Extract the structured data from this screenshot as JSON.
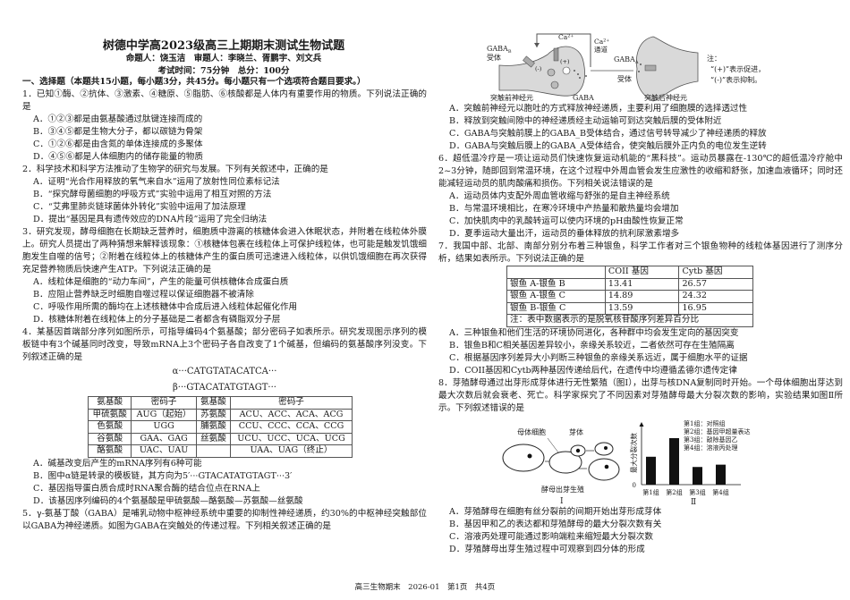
{
  "header": {
    "title": "树德中学高2023级高三上期期末测试生物试题",
    "authors": "命题人：饶玉洁　审题人：李晓兰、胥鹏宇、刘文兵",
    "exam_info": "考试时间：75分钟　总分：100分"
  },
  "section": "一、选择题（本题共15小题，每小题3分，共45分。每小题只有一个选项符合题目要求。）",
  "questions": [
    {
      "stem": "1．已知①酶、②抗体、③激素、④糖原、⑤脂肪、⑥核酸都是人体内有重要作用的物质。下列说法正确的是",
      "options": [
        "A．①②③都是由氨基酸通过肽键连接而成的",
        "B．③④⑤都是生物大分子，都以碳链为骨架",
        "C．①②⑥都是由含氮的单体连接成的多聚体",
        "D．④⑤⑥都是人体细胞内的储存能量的物质"
      ]
    },
    {
      "stem": "2．科学技术和科学方法推动了生物学的研究与发展。下列有关叙述中，正确的是",
      "options": [
        "A．证明“光合作用释放的氧气来自水”运用了放射性同位素标记法",
        "B．“探究酵母菌细胞的呼吸方式”实验中运用了相互对照的方法",
        "C．“艾弗里肺炎链球菌体外转化”实验中运用了加法原理",
        "D．提出“基因是具有遗传效应的DNA片段”运用了完全归纳法"
      ]
    },
    {
      "stem": "3．研究发现，酵母细胞在长期缺乏营养时，细胞质中游离的核糖体会进入休眠状态，并附着在线粒体外膜上。研究人员提出了两种猜想来解释该现象：①核糖体包裹在线粒体上可保护线粒体，也可能是触发饥饿细胞发生自噬的信号；②附着在线粒体上的核糖体产生的蛋白质可迅速进入线粒体，以供饥饿细胞在再次获得充足营养物质后快速产生ATP。下列说法正确的是",
      "options": [
        "A．线粒体是细胞的“动力车间”，产生的能量可供核糖体合成蛋白质",
        "B．应阻止营养缺乏时细胞自噬过程以保证细胞器不被清除",
        "C．呼吸作用所需的酶均在上述核糖体中合成后进入线粒体起催化作用",
        "D．核糖体附着在线粒体上的分子基础是二者都含有磷脂双分子层"
      ]
    },
    {
      "stem": "4．某基因首端部分序列如图所示，可指导编码4个氨基酸；部分密码子如表所示。研究发现图示序列的模板链中有3个碱基同时改变，导致mRNA上3个密码子各自改变了1个碱基，但编码的氨基酸序列没变。下列叙述正确的是",
      "sequence_alpha": "α···CATGTATACATCA···",
      "sequence_beta": "β···GTACATATGTAGT···",
      "codon_table": {
        "headers": [
          "氨基酸",
          "密码子",
          "氨基酸",
          "密码子"
        ],
        "rows": [
          [
            "甲硫氨酸",
            "AUG（起始）",
            "苏氨酸",
            "ACU、ACC、ACA、ACG"
          ],
          [
            "色氨酸",
            "UGG",
            "脯氨酸",
            "CCU、CCC、CCA、CCG"
          ],
          [
            "谷氨酸",
            "GAA、GAG",
            "丝氨酸",
            "UCU、UCC、UCA、UCG"
          ],
          [
            "酪氨酸",
            "UAC、UAU",
            "",
            "UAA、UAG（终止）"
          ]
        ]
      },
      "options": [
        "A．碱基改变后产生的mRNA序列有6种可能",
        "B．图中α链是转录的模板链，其方向为5′···GTACATATGTAGT···3′",
        "C．基因指导蛋白质合成时RNA聚合酶的结合位点在RNA上",
        "D．该基因序列编码的4个氨基酸是甲硫氨酸—酪氨酸—苏氨酸—丝氨酸"
      ]
    },
    {
      "stem": "5．γ-氨基丁酸（GABA）是哺乳动物中枢神经系统中重要的抑制性神经递质，约30%的中枢神经突触部位以GABA为神经递质。如图为GABA在突触处的传递过程。下列相关叙述正确的是",
      "figure": {
        "ca": "Ca²⁺",
        "ca_channel_1": "Ca²⁺",
        "ca_channel_2": "通道",
        "gaba_b_1": "GABA",
        "gaba_b_sub": "B",
        "gaba_b_2": "受体",
        "gaba_a_1": "GABA",
        "gaba_a_sub": "A",
        "gaba_a_2": "受体",
        "minus": "(-)",
        "plus": "(+)",
        "gaba": "GABA",
        "pre": "突触前神经元",
        "post": "突触后神经元",
        "note_title": "注：",
        "note_1": "“(+)”表示促进，",
        "note_2": "“(-)”表示抑制。"
      },
      "options": [
        "A．突触前神经元以胞吐的方式释放神经递质，主要利用了细胞膜的选择透过性",
        "B．释放到突触间隙中的神经递质经主动运输可到达突触后膜的受体附近",
        "C．GABA与突触前膜上的GABA_B受体结合，通过信号转导减少了神经递质的释放",
        "D．GABA与突触后膜上的GABA_A受体结合，使突触后膜外正内负的电位发生逆转"
      ]
    },
    {
      "stem": "6．超低温冷疗是一项让运动员们快速恢复运动机能的“黑科技”。运动员暴露在-130℃的超低温冷疗舱中2~3分钟，随即回到常温环境，在这个过程中外周血管会发生应激性的收缩和舒张，加速血液循环；同时还能减轻运动员的肌肉酸痛和损伤。下列相关说法错误的是",
      "options": [
        "A．运动员体内支配外周血管收缩与舒张的是自主神经系统",
        "B．与常温环境相比，在寒冷环境中产热量和散热量均会增加",
        "C．加快肌肉中的乳酸转运可以使内环境的pH由酸性恢复正常",
        "D．夏季运动大量出汗，运动员的垂体释放的抗利尿激素增多"
      ]
    },
    {
      "stem": "7．我国中部、北部、南部分别分布着三种银鱼，科学工作者对三个银鱼物种的线粒体基因进行了测序分析，结果如表所示。下列说法正确的是",
      "table": {
        "headers": [
          "",
          "COII 基因",
          "Cytb 基因"
        ],
        "rows": [
          [
            "银鱼 A-银鱼 B",
            "13.41",
            "26.57"
          ],
          [
            "银鱼 A-银鱼 C",
            "14.89",
            "24.32"
          ],
          [
            "银鱼 B-银鱼 C",
            "13.59",
            "16.95"
          ]
        ],
        "note": "注：表中数据表示的是脱氧核苷酸序列差异百分比"
      },
      "options": [
        "A．三种银鱼和他们生活的环境协同进化，各种群中均会发生定向的基因突变",
        "B．银鱼B和C相关基因差异较小，亲缘关系较近，二者依然可存在生殖隔离",
        "C．根据基因序列差异大小判断三种银鱼的亲缘关系远近，属于细胞水平的证据",
        "D．COII基因和Cytb两种基因传递给后代，在遗传中均遵循孟德尔遗传定律"
      ]
    },
    {
      "stem": "8．芽殖酵母通过出芽形成芽体进行无性繁殖（图Ⅰ），出芽与核DNA复制同时开始。一个母体细胞出芽达到最大次数后就会衰老、死亡。科学家探究了不同因素对芽殖酵母最大分裂次数的影响，实验结果如图Ⅱ所示。下列叙述错误的是",
      "figure_1": {
        "mother": "母体细胞",
        "bud": "芽体",
        "caption": "酵母出芽生殖",
        "label": "Ⅰ"
      },
      "options": [
        "A．芽殖酵母在细胞有丝分裂前的间期开始出芽形成芽体",
        "B．基因甲和乙的表达都和芽殖酵母的最大分裂次数有关",
        "C．溶液丙处理可能通过影响端粒来缩短最大分裂次数",
        "D．芽殖酵母出芽生殖过程中可观察到四分体的形成"
      ]
    }
  ],
  "chart_data": {
    "type": "bar",
    "categories": [
      "第1组",
      "第2组",
      "第3组",
      "第4组"
    ],
    "values": [
      0.6,
      1.0,
      0.38,
      0.43
    ],
    "ylabel": "最大分裂次数",
    "y_ticks": [
      "0"
    ],
    "legend": [
      "第1组：对照组",
      "第2组：基因甲超量表达",
      "第3组：敲除基因乙",
      "第4组：溶液丙处理"
    ],
    "legend_position": "top-right",
    "label": "Ⅱ",
    "grid": false,
    "bar_color": "#111111"
  },
  "footer": "高三生物期末　2026-01　第1页　共4页"
}
